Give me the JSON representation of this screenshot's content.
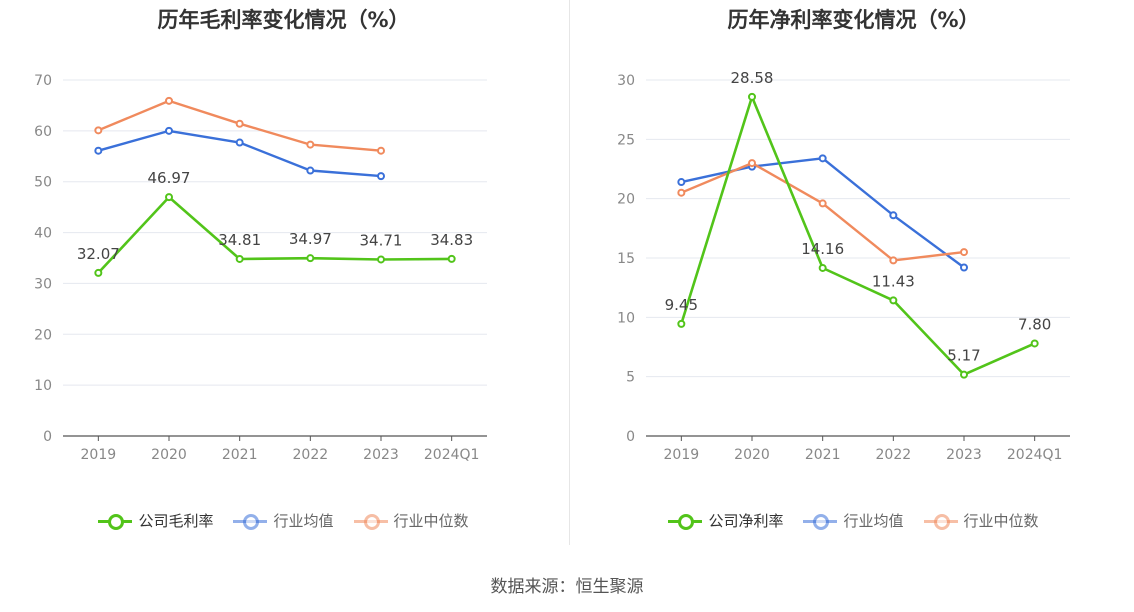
{
  "source_label": "数据来源：恒生聚源",
  "colors": {
    "company": "#52c41a",
    "industry_avg": "#3a70d9",
    "industry_median": "#f08a5d",
    "grid": "#e5e8ef",
    "axis": "#666666",
    "label": "#444444"
  },
  "chart_data": [
    {
      "type": "line",
      "title": "历年毛利率变化情况（%）",
      "categories": [
        "2019",
        "2020",
        "2021",
        "2022",
        "2023",
        "2024Q1"
      ],
      "yticks": [
        0,
        10,
        20,
        30,
        40,
        50,
        60,
        70
      ],
      "ylim": [
        0,
        70
      ],
      "grid": true,
      "legend_position": "bottom",
      "series": [
        {
          "name": "公司毛利率",
          "key": "company",
          "values": [
            32.07,
            46.97,
            34.81,
            34.97,
            34.71,
            34.83
          ],
          "labels": [
            "32.07",
            "46.97",
            "34.81",
            "34.97",
            "34.71",
            "34.83"
          ]
        },
        {
          "name": "行业均值",
          "key": "industry_avg",
          "values": [
            56.1,
            60.0,
            57.7,
            52.2,
            51.1,
            null
          ]
        },
        {
          "name": "行业中位数",
          "key": "industry_median",
          "values": [
            60.1,
            65.9,
            61.4,
            57.3,
            56.1,
            null
          ]
        }
      ]
    },
    {
      "type": "line",
      "title": "历年净利率变化情况（%）",
      "categories": [
        "2019",
        "2020",
        "2021",
        "2022",
        "2023",
        "2024Q1"
      ],
      "yticks": [
        0,
        5,
        10,
        15,
        20,
        25,
        30
      ],
      "ylim": [
        0,
        30
      ],
      "grid": true,
      "legend_position": "bottom",
      "series": [
        {
          "name": "公司净利率",
          "key": "company",
          "values": [
            9.45,
            28.58,
            14.16,
            11.43,
            5.17,
            7.8
          ],
          "labels": [
            "9.45",
            "28.58",
            "14.16",
            "11.43",
            "5.17",
            "7.80"
          ]
        },
        {
          "name": "行业均值",
          "key": "industry_avg",
          "values": [
            21.4,
            22.7,
            23.4,
            18.6,
            14.2,
            null
          ]
        },
        {
          "name": "行业中位数",
          "key": "industry_median",
          "values": [
            20.5,
            23.0,
            19.6,
            14.8,
            15.5,
            null
          ]
        }
      ]
    }
  ]
}
